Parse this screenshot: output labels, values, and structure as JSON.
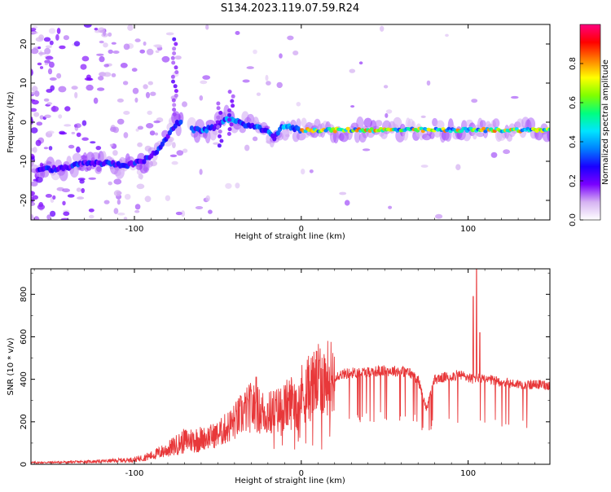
{
  "title": "S134.2023.119.07.59.R24",
  "colors": {
    "snr_line": "#e8383a",
    "axis": "#000000"
  },
  "chart_data": [
    {
      "type": "heatmap",
      "xlabel": "Height of straight line (km)",
      "ylabel": "Frequency (Hz)",
      "xlim": [
        -162,
        149
      ],
      "ylim": [
        -25,
        25
      ],
      "xticks": [
        -100,
        0,
        100
      ],
      "yticks": [
        -20,
        -10,
        0,
        10,
        20
      ],
      "colorbar": {
        "label": "Normalized spectral amplitude",
        "range": [
          0,
          1
        ],
        "ticks": [
          0.0,
          0.2,
          0.4,
          0.6,
          0.8
        ],
        "colormap": [
          "#ffffff",
          "#d6b3f2",
          "#7a00ff",
          "#1a00ff",
          "#0080ff",
          "#00e5ff",
          "#00ff7f",
          "#7fff00",
          "#ffff00",
          "#ff8000",
          "#ff0000",
          "#ff007f"
        ]
      },
      "ridge": [
        [
          -145,
          -12
        ],
        [
          -130,
          -10.5
        ],
        [
          -115,
          -10.5
        ],
        [
          -105,
          -11
        ],
        [
          -95,
          -10
        ],
        [
          -85,
          -7
        ],
        [
          -78,
          -2
        ],
        [
          -74,
          0
        ],
        [
          -64,
          -2
        ],
        [
          -58,
          -2
        ],
        [
          -50,
          -1
        ],
        [
          -45,
          1
        ],
        [
          -38,
          0
        ],
        [
          -30,
          -1
        ],
        [
          -22,
          -2
        ],
        [
          -16,
          -4
        ],
        [
          -12,
          -1
        ],
        [
          -5,
          -1.5
        ],
        [
          0,
          -2
        ],
        [
          10,
          -2
        ],
        [
          40,
          -2
        ],
        [
          80,
          -2
        ],
        [
          100,
          -2
        ],
        [
          130,
          -2
        ],
        [
          148,
          -2
        ]
      ]
    },
    {
      "type": "line",
      "xlabel": "Height of straight line (km)",
      "ylabel": "SNR (10 * v/v)",
      "xlim": [
        -162,
        149
      ],
      "ylim": [
        0,
        920
      ],
      "xticks": [
        -100,
        0,
        100
      ],
      "yticks": [
        0,
        200,
        400,
        600,
        800
      ],
      "series": [
        {
          "x": [
            -162,
            -140,
            -120,
            -100,
            -90,
            -80,
            -70,
            -60,
            -50,
            -45,
            -40,
            -35,
            -30,
            -25,
            -20,
            -15,
            -10,
            -5,
            0,
            5,
            10,
            15,
            20,
            25,
            30,
            40,
            50,
            60,
            65,
            70,
            75,
            80,
            90,
            95,
            100,
            103,
            105,
            108,
            115,
            125,
            135,
            145,
            149
          ],
          "y": [
            8,
            10,
            14,
            22,
            40,
            70,
            110,
            120,
            140,
            170,
            200,
            240,
            270,
            250,
            240,
            250,
            270,
            300,
            330,
            360,
            390,
            405,
            415,
            425,
            430,
            435,
            440,
            438,
            430,
            400,
            260,
            400,
            415,
            420,
            410,
            400,
            410,
            400,
            395,
            380,
            375,
            375,
            370
          ]
        }
      ],
      "spikes": [
        [
          -27,
          410
        ],
        [
          -10,
          350
        ],
        [
          -5,
          330
        ],
        [
          11,
          490
        ],
        [
          103,
          790
        ],
        [
          105,
          920
        ],
        [
          107,
          620
        ]
      ]
    }
  ]
}
